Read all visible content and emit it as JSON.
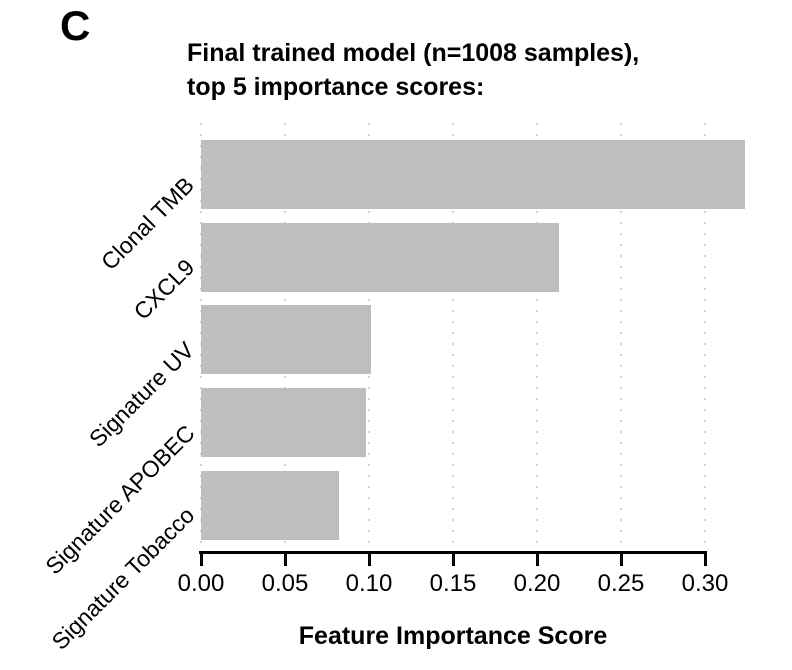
{
  "panel_label": "C",
  "title": {
    "line1": "Final trained model (n=1008 samples),",
    "line2": "top 5 importance scores:"
  },
  "chart_data": {
    "type": "bar",
    "orientation": "horizontal",
    "title": "Final trained model (n=1008 samples), top 5 importance scores:",
    "categories": [
      "Clonal TMB",
      "CXCL9",
      "Signature UV",
      "Signature APOBEC",
      "Signature Tobacco"
    ],
    "values": [
      0.324,
      0.213,
      0.101,
      0.098,
      0.082
    ],
    "xlabel": "Feature Importance Score",
    "ylabel": "",
    "xlim": [
      0,
      0.33
    ],
    "xticks": [
      0.0,
      0.05,
      0.1,
      0.15,
      0.2,
      0.25,
      0.3
    ],
    "xtick_labels": [
      "0.00",
      "0.05",
      "0.10",
      "0.15",
      "0.20",
      "0.25",
      "0.30"
    ],
    "grid": "vertical dotted lines at x ticks",
    "legend": "none",
    "bar_color": "#bebebe",
    "grid_color": "#d2d2d2",
    "axis_color": "#000000"
  }
}
